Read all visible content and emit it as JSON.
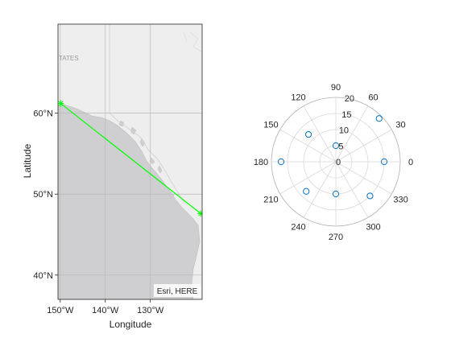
{
  "chart_data": [
    {
      "type": "map-line",
      "title": "",
      "basemap_attribution": "Esri, HERE",
      "basemap_label": "TATES",
      "xlabel": "Longitude",
      "ylabel": "Latitude",
      "xlim": [
        -150.5,
        -118.5
      ],
      "ylim": [
        37,
        71
      ],
      "xtick_labels": [
        {
          "value": -150,
          "label": "150°W"
        },
        {
          "value": -140,
          "label": "140°W"
        },
        {
          "value": -130,
          "label": "130°W"
        }
      ],
      "ytick_labels": [
        {
          "value": 60,
          "label": "60°N"
        },
        {
          "value": 50,
          "label": "50°N"
        },
        {
          "value": 40,
          "label": "40°N"
        }
      ],
      "series": [
        {
          "lon": [
            -149.9,
            -118.8
          ],
          "lat": [
            61.2,
            47.6
          ],
          "color": "#00ff00",
          "marker": "asterisk"
        }
      ],
      "colors": {
        "land": "#cfcfd1",
        "water": "#eeeeee",
        "grid": "#b9b9b9"
      }
    },
    {
      "type": "polar-scatter",
      "title": "",
      "rlim": [
        0,
        20
      ],
      "r_tick_labels": [
        "0",
        "5",
        "10",
        "15",
        "20"
      ],
      "theta_tick_labels": [
        "0",
        "30",
        "60",
        "90",
        "120",
        "150",
        "180",
        "210",
        "240",
        "270",
        "300",
        "330"
      ],
      "series": [
        {
          "theta_deg": [
            0,
            45,
            90,
            135,
            180,
            225,
            270,
            315
          ],
          "r": [
            15,
            19,
            5,
            12,
            17,
            13,
            10,
            15
          ],
          "marker": "circle",
          "color": "#0072bd"
        }
      ]
    }
  ]
}
